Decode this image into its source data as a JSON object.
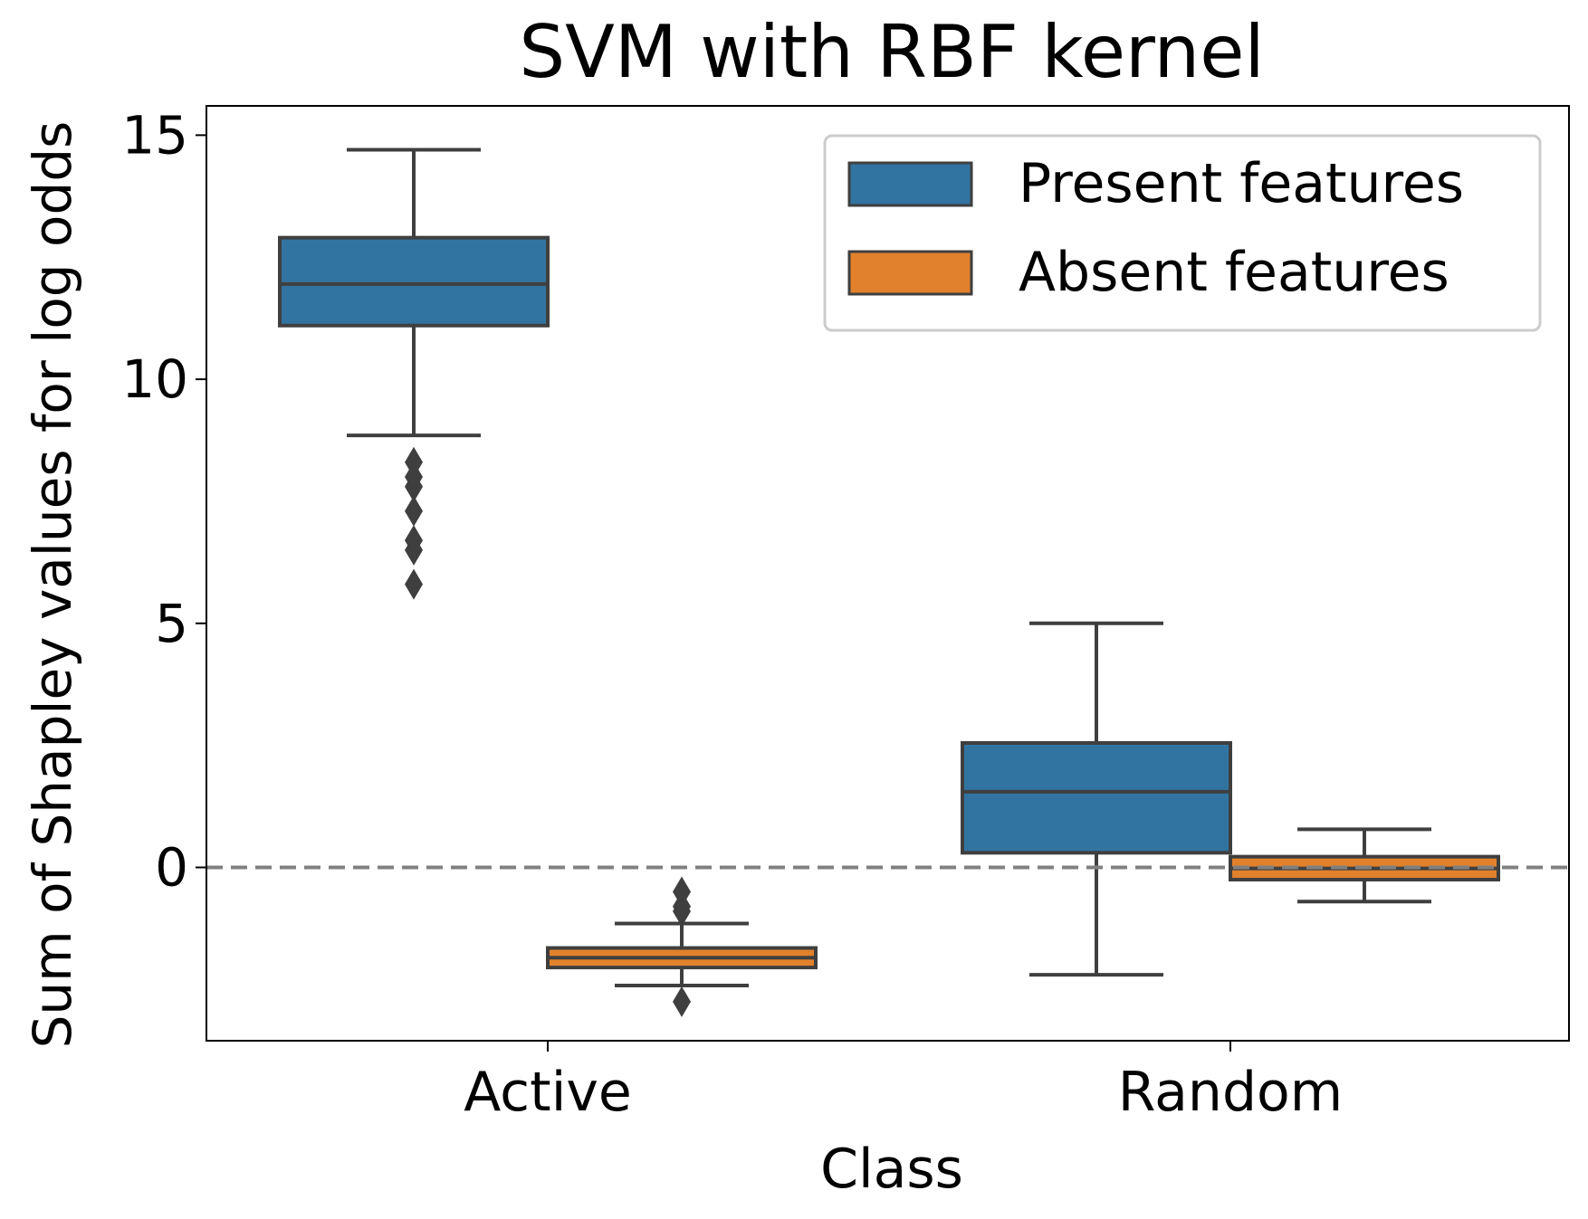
{
  "chart_data": {
    "type": "box",
    "title": "SVM with RBF kernel",
    "xlabel": "Class",
    "ylabel": "Sum of Shapley values for log odds",
    "ylim": [
      -3.55,
      15.6
    ],
    "yticks": [
      0,
      5,
      10,
      15
    ],
    "categories": [
      "Active",
      "Random"
    ],
    "reference_line": {
      "y": 0,
      "style": "dashed",
      "color": "#808080"
    },
    "legend": {
      "position": "top-right"
    },
    "series": [
      {
        "name": "Present features",
        "color": "#3274a1",
        "boxes": [
          {
            "category": "Active",
            "whislo": 8.85,
            "q1": 11.1,
            "med": 11.95,
            "q3": 12.9,
            "whishi": 14.7,
            "fliers": [
              8.3,
              8.0,
              7.8,
              7.3,
              6.7,
              6.5,
              5.8
            ]
          },
          {
            "category": "Random",
            "whislo": -2.2,
            "q1": 0.3,
            "med": 1.55,
            "q3": 2.55,
            "whishi": 5.0,
            "fliers": []
          }
        ]
      },
      {
        "name": "Absent features",
        "color": "#e1812c",
        "boxes": [
          {
            "category": "Active",
            "whislo": -2.42,
            "q1": -2.05,
            "med": -1.85,
            "q3": -1.65,
            "whishi": -1.15,
            "fliers": [
              -0.5,
              -0.8,
              -0.9,
              -2.75
            ]
          },
          {
            "category": "Random",
            "whislo": -0.7,
            "q1": -0.25,
            "med": -0.02,
            "q3": 0.22,
            "whishi": 0.78,
            "fliers": []
          }
        ]
      }
    ]
  }
}
